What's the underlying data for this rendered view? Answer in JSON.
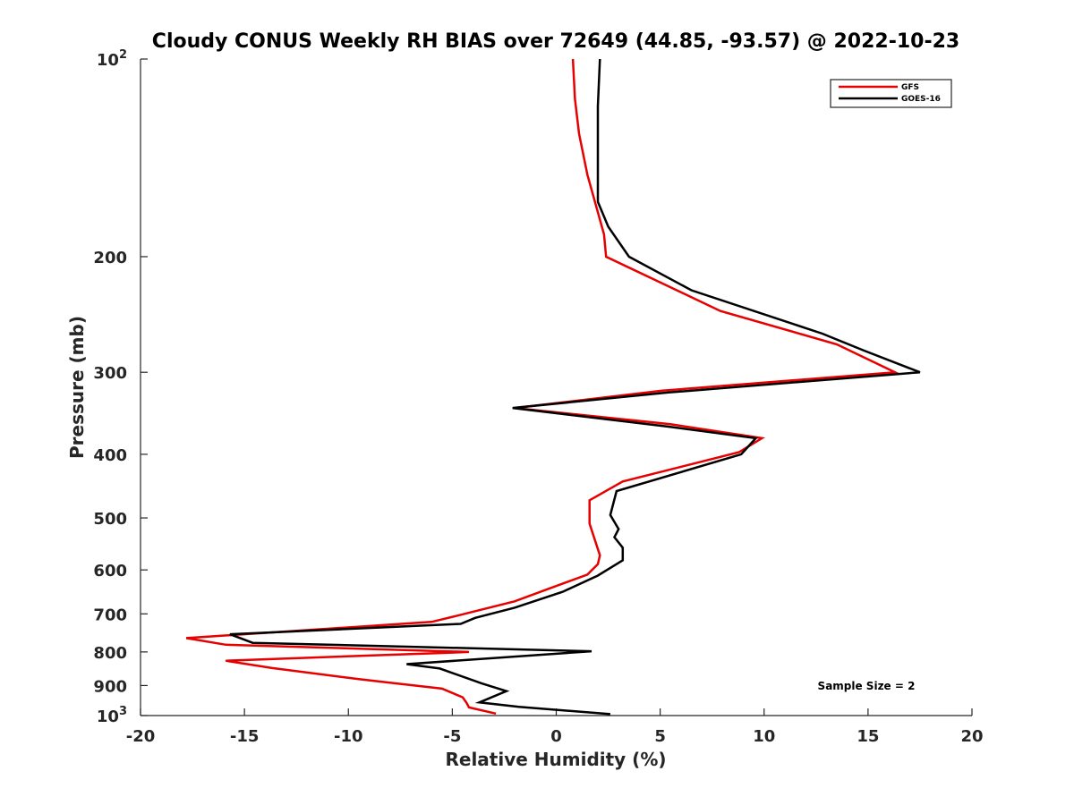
{
  "chart_data": {
    "type": "line",
    "title": "Cloudy CONUS Weekly RH BIAS over 72649 (44.85, -93.57) @ 2022-10-23",
    "xlabel": "Relative Humidity (%)",
    "ylabel": "Pressure (mb)",
    "xlim": [
      -20,
      20
    ],
    "ylim": [
      100,
      1000
    ],
    "y_scale": "log",
    "y_reversed": true,
    "grid": false,
    "legend_position": "top-right",
    "x_ticks": [
      "-20",
      "-15",
      "-10",
      "-5",
      "0",
      "5",
      "10",
      "15",
      "20"
    ],
    "y_ticks": [
      {
        "value": 100,
        "base": "10",
        "exp": "2"
      },
      {
        "value": 200,
        "label": "200"
      },
      {
        "value": 300,
        "label": "300"
      },
      {
        "value": 400,
        "label": "400"
      },
      {
        "value": 500,
        "label": "500"
      },
      {
        "value": 600,
        "label": "600"
      },
      {
        "value": 700,
        "label": "700"
      },
      {
        "value": 800,
        "label": "800"
      },
      {
        "value": 900,
        "label": "900"
      },
      {
        "value": 1000,
        "base": "10",
        "exp": "3"
      }
    ],
    "series": [
      {
        "name": "GFS",
        "color": "#e60000",
        "points": [
          [
            0.8,
            100
          ],
          [
            0.9,
            115
          ],
          [
            1.1,
            130
          ],
          [
            1.5,
            150
          ],
          [
            2.3,
            185
          ],
          [
            2.4,
            200
          ],
          [
            7.9,
            242
          ],
          [
            13.5,
            272
          ],
          [
            16.3,
            300
          ],
          [
            5.1,
            320
          ],
          [
            -2.0,
            340
          ],
          [
            5.5,
            360
          ],
          [
            9.9,
            378
          ],
          [
            8.8,
            397
          ],
          [
            3.2,
            440
          ],
          [
            1.6,
            470
          ],
          [
            1.6,
            510
          ],
          [
            2.1,
            570
          ],
          [
            2.0,
            588
          ],
          [
            1.5,
            610
          ],
          [
            -0.3,
            640
          ],
          [
            -2.0,
            670
          ],
          [
            -4.8,
            705
          ],
          [
            -6.0,
            720
          ],
          [
            -17.8,
            762
          ],
          [
            -15.9,
            780
          ],
          [
            -4.2,
            800
          ],
          [
            -15.9,
            825
          ],
          [
            -13.7,
            846
          ],
          [
            -9.5,
            880
          ],
          [
            -5.5,
            910
          ],
          [
            -4.5,
            938
          ],
          [
            -4.3,
            958
          ],
          [
            -4.2,
            972
          ],
          [
            -2.9,
            993
          ]
        ]
      },
      {
        "name": "GOES-16",
        "color": "#000000",
        "points": [
          [
            2.1,
            100
          ],
          [
            2.0,
            118
          ],
          [
            2.0,
            140
          ],
          [
            2.0,
            165
          ],
          [
            2.5,
            180
          ],
          [
            3.5,
            200
          ],
          [
            6.5,
            225
          ],
          [
            12.8,
            262
          ],
          [
            14.8,
            278
          ],
          [
            17.5,
            300
          ],
          [
            5.4,
            322
          ],
          [
            -2.1,
            340
          ],
          [
            5.4,
            363
          ],
          [
            9.6,
            378
          ],
          [
            8.9,
            400
          ],
          [
            2.9,
            455
          ],
          [
            2.6,
            495
          ],
          [
            3.0,
            520
          ],
          [
            2.8,
            535
          ],
          [
            3.2,
            555
          ],
          [
            3.2,
            580
          ],
          [
            2.0,
            612
          ],
          [
            0.3,
            648
          ],
          [
            -2.0,
            685
          ],
          [
            -3.9,
            710
          ],
          [
            -4.6,
            725
          ],
          [
            -15.7,
            752
          ],
          [
            -14.6,
            775
          ],
          [
            1.7,
            798
          ],
          [
            -7.2,
            835
          ],
          [
            -5.6,
            848
          ],
          [
            -3.6,
            893
          ],
          [
            -2.4,
            918
          ],
          [
            -3.7,
            955
          ],
          [
            -1.8,
            970
          ],
          [
            2.6,
            995
          ]
        ]
      }
    ],
    "annotations": [
      "Sample Size = 2"
    ]
  }
}
